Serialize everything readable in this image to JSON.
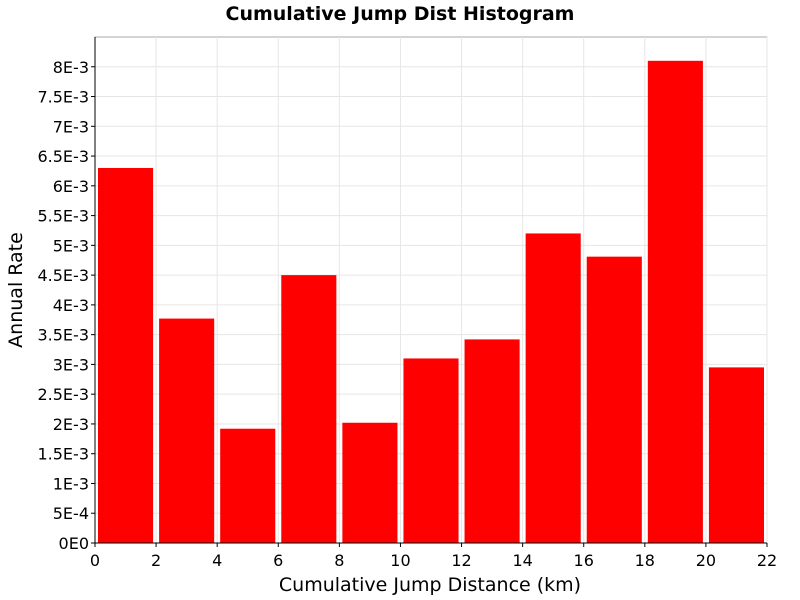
{
  "chart_data": {
    "type": "bar",
    "title": "Cumulative Jump Dist Histogram",
    "xlabel": "Cumulative Jump Distance (km)",
    "ylabel": "Annual Rate",
    "xlim": [
      0,
      22
    ],
    "ylim": [
      0,
      0.0085
    ],
    "grid": true,
    "bar_color": "#ff0000",
    "x_ticks": [
      {
        "value": 0,
        "label": "0"
      },
      {
        "value": 2,
        "label": "2"
      },
      {
        "value": 4,
        "label": "4"
      },
      {
        "value": 6,
        "label": "6"
      },
      {
        "value": 8,
        "label": "8"
      },
      {
        "value": 10,
        "label": "10"
      },
      {
        "value": 12,
        "label": "12"
      },
      {
        "value": 14,
        "label": "14"
      },
      {
        "value": 16,
        "label": "16"
      },
      {
        "value": 18,
        "label": "18"
      },
      {
        "value": 20,
        "label": "20"
      },
      {
        "value": 22,
        "label": "22"
      }
    ],
    "y_ticks": [
      {
        "value": 0,
        "label": "0E0"
      },
      {
        "value": 0.0005,
        "label": "5E-4"
      },
      {
        "value": 0.001,
        "label": "1E-3"
      },
      {
        "value": 0.0015,
        "label": "1.5E-3"
      },
      {
        "value": 0.002,
        "label": "2E-3"
      },
      {
        "value": 0.0025,
        "label": "2.5E-3"
      },
      {
        "value": 0.003,
        "label": "3E-3"
      },
      {
        "value": 0.0035,
        "label": "3.5E-3"
      },
      {
        "value": 0.004,
        "label": "4E-3"
      },
      {
        "value": 0.0045,
        "label": "4.5E-3"
      },
      {
        "value": 0.005,
        "label": "5E-3"
      },
      {
        "value": 0.0055,
        "label": "5.5E-3"
      },
      {
        "value": 0.006,
        "label": "6E-3"
      },
      {
        "value": 0.0065,
        "label": "6.5E-3"
      },
      {
        "value": 0.007,
        "label": "7E-3"
      },
      {
        "value": 0.0075,
        "label": "7.5E-3"
      },
      {
        "value": 0.008,
        "label": "8E-3"
      }
    ],
    "bins": [
      {
        "x0": 0,
        "x1": 2,
        "value": 0.0063
      },
      {
        "x0": 2,
        "x1": 4,
        "value": 0.00377
      },
      {
        "x0": 4,
        "x1": 6,
        "value": 0.00192
      },
      {
        "x0": 6,
        "x1": 8,
        "value": 0.0045
      },
      {
        "x0": 8,
        "x1": 10,
        "value": 0.00202
      },
      {
        "x0": 10,
        "x1": 12,
        "value": 0.0031
      },
      {
        "x0": 12,
        "x1": 14,
        "value": 0.00342
      },
      {
        "x0": 14,
        "x1": 16,
        "value": 0.0052
      },
      {
        "x0": 16,
        "x1": 18,
        "value": 0.00481
      },
      {
        "x0": 18,
        "x1": 20,
        "value": 0.0081
      },
      {
        "x0": 20,
        "x1": 22,
        "value": 0.00295
      }
    ]
  }
}
